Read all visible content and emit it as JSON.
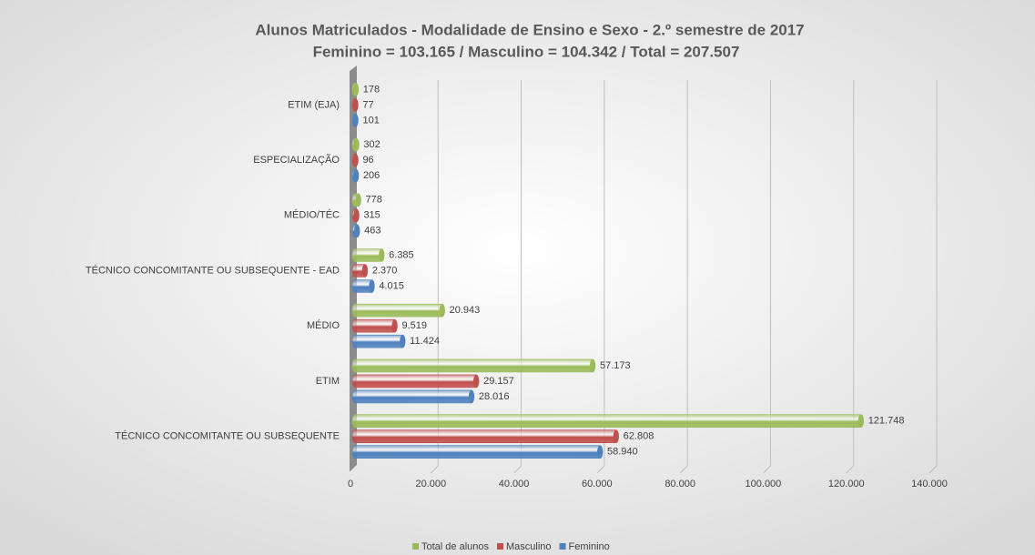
{
  "chart_data": {
    "type": "bar",
    "orientation": "horizontal",
    "title": "Alunos Matriculados - Modalidade de Ensino e Sexo - 2.º semestre de 2017",
    "subtitle": "Feminino = 103.165 / Masculino = 104.342 / Total =  207.507",
    "categories": [
      "ETIM (EJA)",
      "ESPECIALIZAÇÃO",
      "MÉDIO/TÉC",
      "TÉCNICO CONCOMITANTE OU SUBSEQUENTE - EAD",
      "MÉDIO",
      "ETIM",
      "TÉCNICO CONCOMITANTE OU SUBSEQUENTE"
    ],
    "series": [
      {
        "name": "Total de alunos",
        "color": "#9bbb59",
        "values": [
          178,
          302,
          778,
          6385,
          20943,
          57173,
          121748
        ],
        "value_labels": [
          "178",
          "302",
          "778",
          "6.385",
          "20.943",
          "57.173",
          "121.748"
        ]
      },
      {
        "name": "Masculino",
        "color": "#c0504d",
        "values": [
          77,
          96,
          315,
          2370,
          9519,
          29157,
          62808
        ],
        "value_labels": [
          "77",
          "96",
          "315",
          "2.370",
          "9.519",
          "29.157",
          "62.808"
        ]
      },
      {
        "name": "Feminino",
        "color": "#4f81bd",
        "values": [
          101,
          206,
          463,
          4015,
          11424,
          28016,
          58940
        ],
        "value_labels": [
          "101",
          "206",
          "463",
          "4.015",
          "11.424",
          "28.016",
          "58.940"
        ]
      }
    ],
    "xlim": [
      0,
      140000
    ],
    "xticks": [
      0,
      {
        "value": 20000,
        "label": "20.000"
      },
      {
        "value": 40000,
        "label": "40.000"
      },
      {
        "value": 60000,
        "label": "60.000"
      },
      {
        "value": 80000,
        "label": "80.000"
      },
      {
        "value": 100000,
        "label": "100.000"
      },
      {
        "value": 120000,
        "label": "120.000"
      },
      {
        "value": 140000,
        "label": "140.000"
      }
    ],
    "grid": true,
    "legend": "bottom"
  }
}
